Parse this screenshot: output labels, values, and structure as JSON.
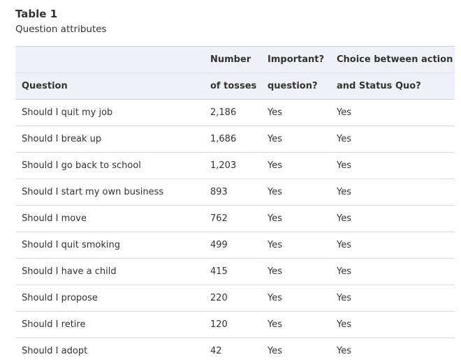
{
  "caption": {
    "label": "Table 1",
    "title": "Question attributes"
  },
  "table": {
    "headers": {
      "question": [
        "",
        "Question"
      ],
      "tosses": [
        "Number",
        "of tosses"
      ],
      "important": [
        "Important?",
        "question?"
      ],
      "choice": [
        "Choice between action",
        "and Status Quo?"
      ]
    },
    "rows": [
      [
        "Should I quit my job",
        "2,186",
        "Yes",
        "Yes"
      ],
      [
        "Should I break up",
        "1,686",
        "Yes",
        "Yes"
      ],
      [
        "Should I go back to school",
        "1,203",
        "Yes",
        "Yes"
      ],
      [
        "Should I start my own business",
        "893",
        "Yes",
        "Yes"
      ],
      [
        "Should I move",
        "762",
        "Yes",
        "Yes"
      ],
      [
        "Should I quit smoking",
        "499",
        "Yes",
        "Yes"
      ],
      [
        "Should I have a child",
        "415",
        "Yes",
        "Yes"
      ],
      [
        "Should I propose",
        "220",
        "Yes",
        "Yes"
      ],
      [
        "Should I retire",
        "120",
        "Yes",
        "Yes"
      ],
      [
        "Should I adopt",
        "42",
        "Yes",
        "Yes"
      ]
    ]
  }
}
